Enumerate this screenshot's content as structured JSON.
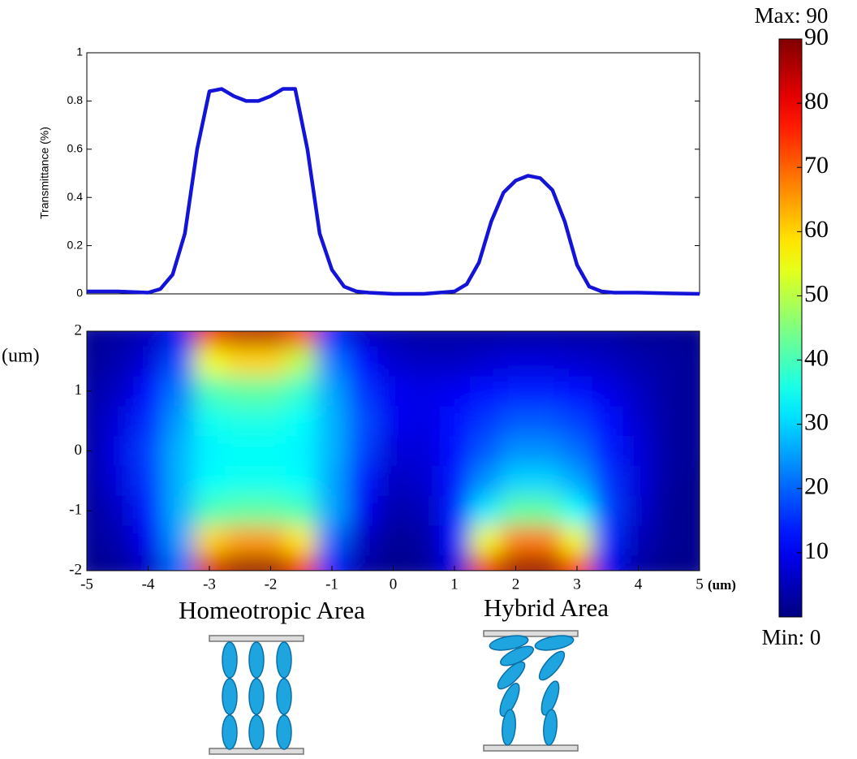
{
  "chart_data": [
    {
      "type": "line",
      "ylabel": "Transmittance (%)",
      "x": [
        -5,
        -4.5,
        -4,
        -3.8,
        -3.6,
        -3.4,
        -3.2,
        -3.0,
        -2.8,
        -2.6,
        -2.4,
        -2.2,
        -2.0,
        -1.8,
        -1.6,
        -1.4,
        -1.2,
        -1.0,
        -0.8,
        -0.6,
        -0.4,
        0,
        0.5,
        1.0,
        1.2,
        1.4,
        1.6,
        1.8,
        2.0,
        2.2,
        2.4,
        2.6,
        2.8,
        3.0,
        3.2,
        3.4,
        3.6,
        4,
        4.5,
        5
      ],
      "values": [
        0.01,
        0.01,
        0.005,
        0.02,
        0.08,
        0.25,
        0.6,
        0.84,
        0.85,
        0.82,
        0.8,
        0.8,
        0.82,
        0.85,
        0.85,
        0.6,
        0.25,
        0.1,
        0.03,
        0.01,
        0.005,
        0,
        0,
        0.01,
        0.04,
        0.13,
        0.3,
        0.42,
        0.47,
        0.49,
        0.48,
        0.43,
        0.3,
        0.12,
        0.03,
        0.01,
        0.005,
        0.005,
        0.002,
        0
      ],
      "color": "#1414d8",
      "xlim": [
        -5,
        5
      ],
      "ylim": [
        0,
        1
      ],
      "yticks": [
        0,
        0.2,
        0.4,
        0.6,
        0.8,
        1
      ]
    },
    {
      "type": "heatmap",
      "xlabel": "(um)",
      "ylabel": "(um)",
      "x": [
        -5,
        -4.5,
        -4,
        -3.5,
        -3,
        -2.5,
        -2,
        -1.5,
        -1,
        -0.5,
        0,
        0.5,
        1,
        1.5,
        2,
        2.5,
        3,
        3.5,
        4,
        4.5,
        5
      ],
      "y": [
        2,
        1.5,
        1,
        0.5,
        0,
        -0.5,
        -1,
        -1.5,
        -2
      ],
      "values": [
        [
          2,
          3,
          5,
          10,
          80,
          85,
          85,
          75,
          12,
          6,
          4,
          3,
          3,
          3,
          3,
          3,
          3,
          3,
          2,
          2,
          1
        ],
        [
          2,
          4,
          8,
          18,
          55,
          60,
          60,
          50,
          22,
          12,
          7,
          6,
          6,
          7,
          8,
          8,
          7,
          6,
          4,
          3,
          2
        ],
        [
          3,
          6,
          12,
          22,
          40,
          42,
          42,
          38,
          26,
          16,
          10,
          9,
          10,
          12,
          14,
          14,
          12,
          9,
          6,
          3,
          2
        ],
        [
          3,
          8,
          15,
          25,
          35,
          36,
          36,
          34,
          27,
          18,
          10,
          9,
          12,
          16,
          19,
          19,
          17,
          12,
          7,
          3,
          2
        ],
        [
          3,
          9,
          17,
          27,
          33,
          34,
          34,
          33,
          27,
          17,
          8,
          8,
          12,
          19,
          24,
          24,
          21,
          14,
          8,
          3,
          2
        ],
        [
          3,
          8,
          16,
          27,
          34,
          35,
          35,
          34,
          26,
          14,
          6,
          7,
          13,
          24,
          30,
          30,
          26,
          16,
          8,
          3,
          1
        ],
        [
          2,
          6,
          14,
          27,
          40,
          42,
          42,
          40,
          26,
          10,
          4,
          5,
          14,
          32,
          42,
          42,
          34,
          17,
          7,
          2,
          1
        ],
        [
          2,
          4,
          10,
          25,
          60,
          65,
          65,
          58,
          20,
          6,
          2,
          3,
          12,
          55,
          68,
          68,
          55,
          15,
          5,
          2,
          1
        ],
        [
          1,
          2,
          6,
          20,
          82,
          88,
          88,
          80,
          12,
          3,
          1,
          2,
          8,
          80,
          88,
          88,
          78,
          10,
          3,
          1,
          1
        ]
      ],
      "xlim": [
        -5,
        5
      ],
      "ylim": [
        -2,
        2
      ],
      "xticks": [
        -5,
        -4,
        -3,
        -2,
        -1,
        0,
        1,
        2,
        3,
        4,
        5
      ],
      "yticks": [
        -2,
        -1,
        0,
        1,
        2
      ],
      "colormap": "jet",
      "clim": [
        0,
        90
      ],
      "cticks": [
        10,
        20,
        30,
        40,
        50,
        60,
        70,
        80,
        90
      ],
      "clabel_max": "Max: 90",
      "clabel_min": "Min: 0",
      "annotations": [
        "Homeotropic Area",
        "Hybrid Area"
      ]
    }
  ]
}
